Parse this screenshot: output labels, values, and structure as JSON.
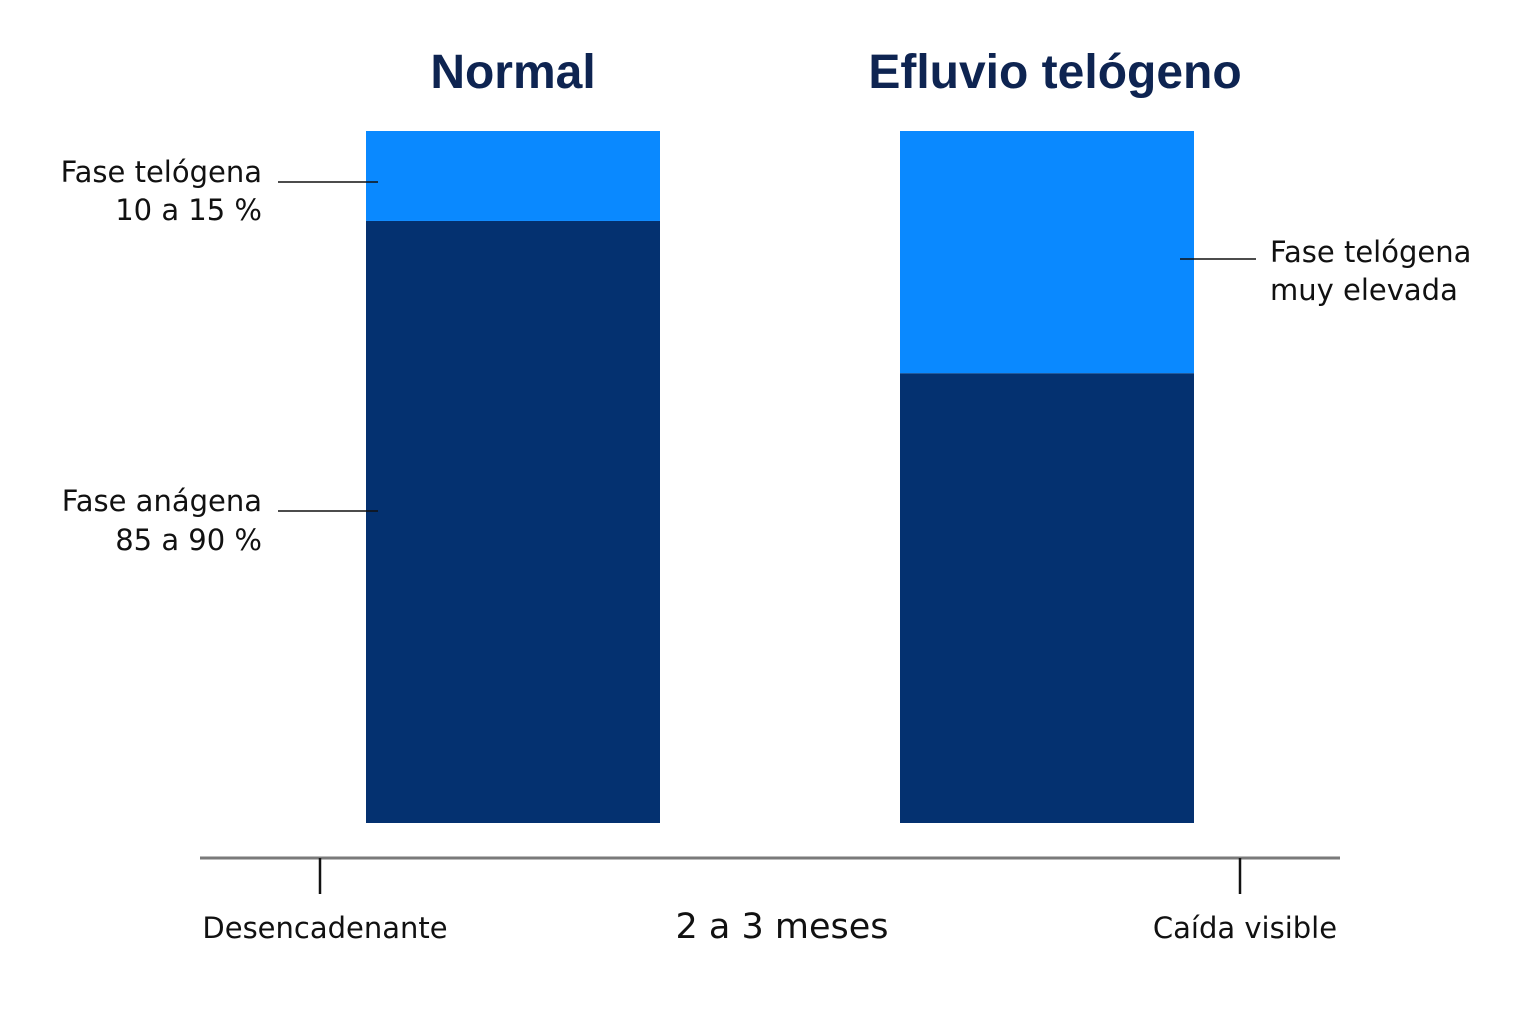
{
  "chart_data": {
    "type": "bar",
    "stacked": true,
    "categories": [
      "Normal",
      "Efluvio telógeno"
    ],
    "series": [
      {
        "name": "Fase anágena",
        "values": [
          87,
          65
        ],
        "color": "#043170"
      },
      {
        "name": "Fase telógena",
        "values": [
          13,
          35
        ],
        "color": "#0A89FF"
      }
    ],
    "ylim": [
      0,
      100
    ],
    "grid": false,
    "annotations": {
      "normal_telogen": [
        "Fase telógena",
        "10 a 15 %"
      ],
      "normal_anagen": [
        "Fase anágena",
        "85 a 90 %"
      ],
      "efluvio_telogen": [
        "Fase telógena",
        "muy elevada"
      ]
    },
    "timeline": {
      "start_label": "Desencadenante",
      "middle_label": "2 a 3 meses",
      "end_label": "Caída visible"
    },
    "colors": {
      "title": "#0E2451",
      "text": "#111111",
      "axis": "#7A7A7A",
      "leader": "#111111"
    }
  }
}
